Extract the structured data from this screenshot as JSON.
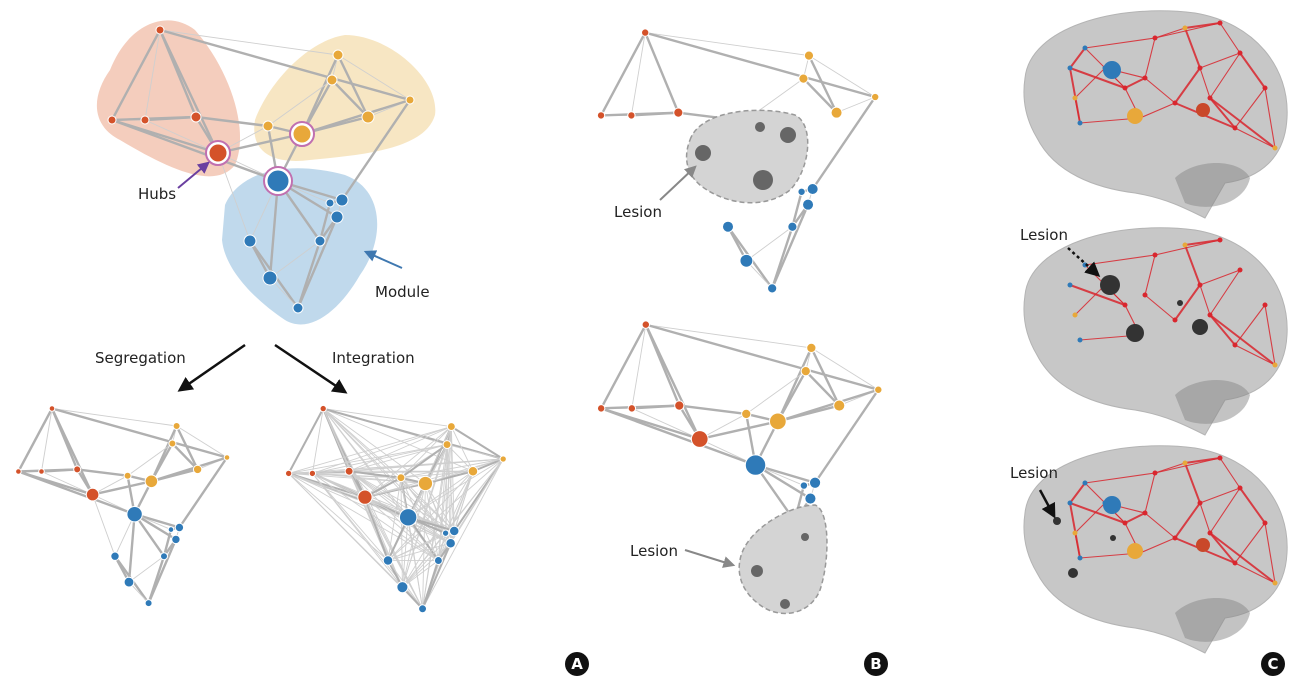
{
  "panel_a": {
    "hubs": "Hubs",
    "module": "Module",
    "segregation": "Segregation",
    "integration": "Integration",
    "label": "A"
  },
  "panel_b": {
    "lesion_top": "Lesion",
    "lesion_bottom": "Lesion",
    "label": "B"
  },
  "panel_c": {
    "lesion_middle": "Lesion",
    "lesion_bottom": "Lesion",
    "label": "C"
  }
}
